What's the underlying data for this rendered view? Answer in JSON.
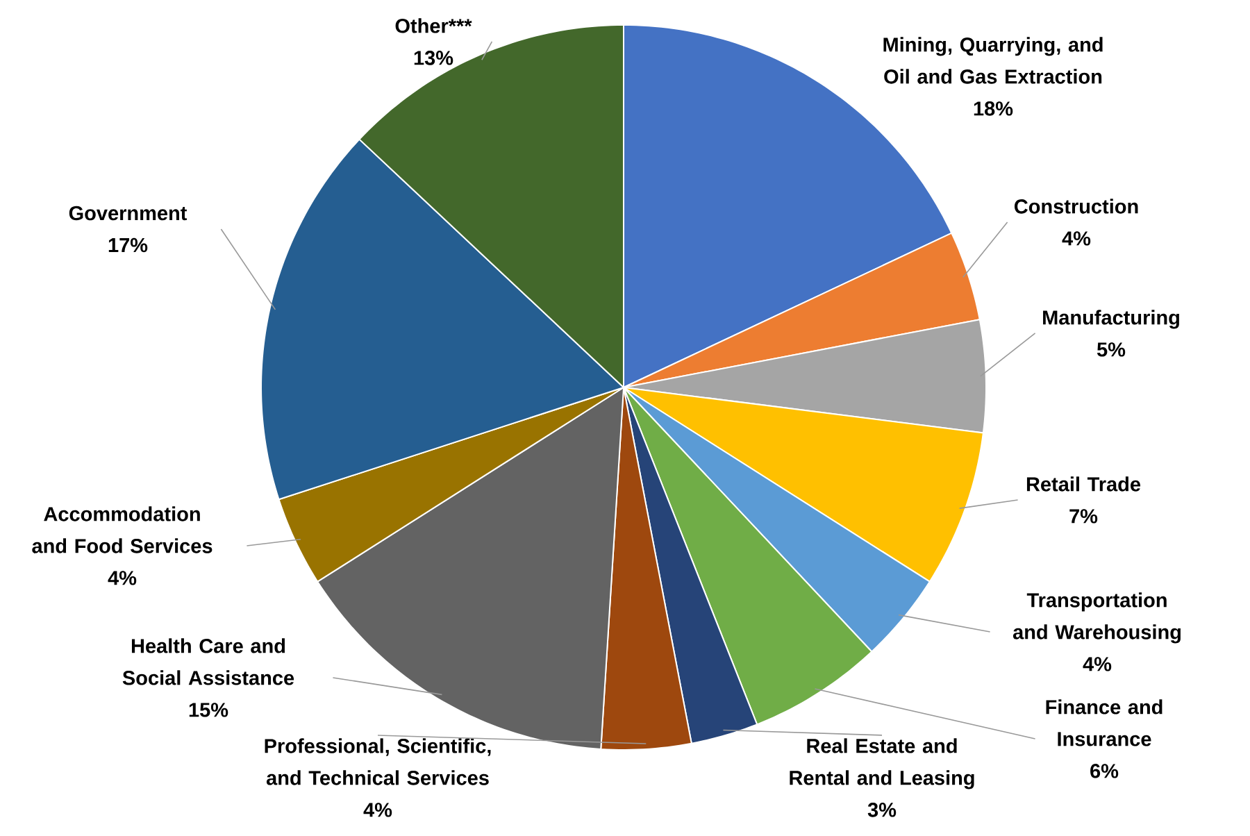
{
  "chart_data": {
    "type": "pie",
    "categories": [
      "Mining, Quarrying, and Oil and Gas Extraction",
      "Construction",
      "Manufacturing",
      "Retail Trade",
      "Transportation and Warehousing",
      "Finance and Insurance",
      "Real Estate and Rental and Leasing",
      "Professional, Scientific, and Technical Services",
      "Health Care and Social Assistance",
      "Accommodation and Food Services",
      "Government",
      "Other***"
    ],
    "values": [
      18,
      4,
      5,
      7,
      4,
      6,
      3,
      4,
      15,
      4,
      17,
      13
    ],
    "value_labels": [
      "18%",
      "4%",
      "5%",
      "7%",
      "4%",
      "6%",
      "3%",
      "4%",
      "15%",
      "4%",
      "17%",
      "13%"
    ],
    "colors": [
      "#4472c4",
      "#ed7d31",
      "#a5a5a5",
      "#ffc000",
      "#5b9bd5",
      "#70ad47",
      "#264478",
      "#9e480e",
      "#636363",
      "#997300",
      "#255e91",
      "#43682b"
    ]
  }
}
